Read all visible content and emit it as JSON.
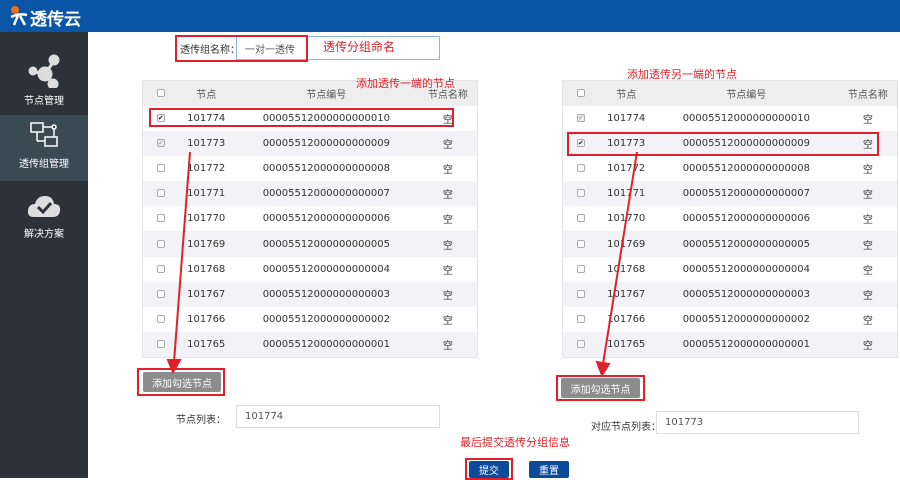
{
  "header": {
    "title": "透传云",
    "logo_icon": "person-logo-icon"
  },
  "sidebar": {
    "items": [
      {
        "label": "节点管理",
        "icon": "share-nodes-icon"
      },
      {
        "label": "透传组管理",
        "icon": "network-icon",
        "active": true
      },
      {
        "label": "解决方案",
        "icon": "cloud-check-icon"
      }
    ]
  },
  "form": {
    "group_name_label": "透传组名称：",
    "group_name_value": "一对一透传",
    "node_list_label": "节点列表：",
    "node_list_value": "101774",
    "peer_list_label": "对应节点列表：",
    "peer_list_value": "101773",
    "add_button": "添加勾选节点",
    "submit": "提交",
    "reset": "重置"
  },
  "table": {
    "headers": [
      "节点",
      "节点编号",
      "节点名称"
    ],
    "rows": [
      [
        "101774",
        "00005512000000000010",
        "空"
      ],
      [
        "101773",
        "00005512000000000009",
        "空"
      ],
      [
        "101772",
        "00005512000000000008",
        "空"
      ],
      [
        "101771",
        "00005512000000000007",
        "空"
      ],
      [
        "101770",
        "00005512000000000006",
        "空"
      ],
      [
        "101769",
        "00005512000000000005",
        "空"
      ],
      [
        "101768",
        "00005512000000000004",
        "空"
      ],
      [
        "101767",
        "00005512000000000003",
        "空"
      ],
      [
        "101766",
        "00005512000000000002",
        "空"
      ],
      [
        "101765",
        "00005512000000000001",
        "空"
      ]
    ],
    "left_checked": {
      "0": "on",
      "1": "dis"
    },
    "right_checked": {
      "0": "dis",
      "1": "on"
    }
  },
  "annotations": {
    "name_note": "透传分组命名",
    "left_note": "添加透传一端的节点",
    "right_note": "添加透传另一端的节点",
    "submit_note": "最后提交透传分组信息",
    "color": "#e0202a"
  }
}
